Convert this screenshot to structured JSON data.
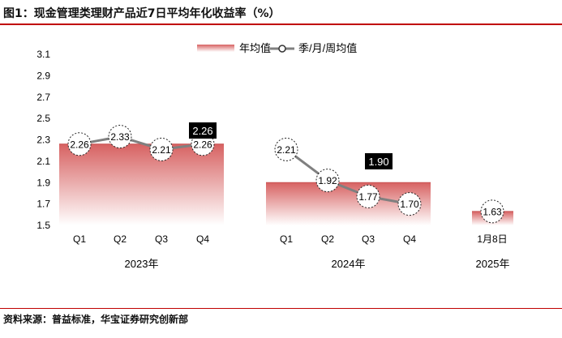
{
  "title": "图1：现金管理类理财产品近7日平均年化收益率（%）",
  "source": "资料来源：普益标准，华宝证券研究创新部",
  "chart_data": {
    "type": "bar+line",
    "ylim": [
      1.5,
      3.1
    ],
    "yticks": [
      "3.1",
      "2.9",
      "2.7",
      "2.5",
      "2.3",
      "2.1",
      "1.9",
      "1.7",
      "1.5"
    ],
    "legend": [
      {
        "name": "年均值",
        "kind": "bar"
      },
      {
        "name": "季/月/周均值",
        "kind": "line"
      }
    ],
    "legend_position": "top-center",
    "groups": [
      {
        "year": "2023年",
        "annual": 2.26,
        "annual_label": "2.26",
        "periods": [
          {
            "label": "Q1",
            "value": 2.26,
            "text": "2.26"
          },
          {
            "label": "Q2",
            "value": 2.33,
            "text": "2.33"
          },
          {
            "label": "Q3",
            "value": 2.21,
            "text": "2.21"
          },
          {
            "label": "Q4",
            "value": 2.26,
            "text": "2.26"
          }
        ]
      },
      {
        "year": "2024年",
        "annual": 1.9,
        "annual_label": "1.90",
        "periods": [
          {
            "label": "Q1",
            "value": 2.21,
            "text": "2.21"
          },
          {
            "label": "Q2",
            "value": 1.92,
            "text": "1.92"
          },
          {
            "label": "Q3",
            "value": 1.77,
            "text": "1.77"
          },
          {
            "label": "Q4",
            "value": 1.7,
            "text": "1.70"
          }
        ]
      },
      {
        "year": "2025年",
        "annual": 1.63,
        "annual_label": "",
        "periods": [
          {
            "label": "1月8日",
            "value": 1.63,
            "text": "1.63"
          }
        ]
      }
    ],
    "colors": {
      "bar_top": "#d76262",
      "bar_bottom": "#ffffff",
      "line": "#808080",
      "label_bg": "#000000"
    }
  }
}
